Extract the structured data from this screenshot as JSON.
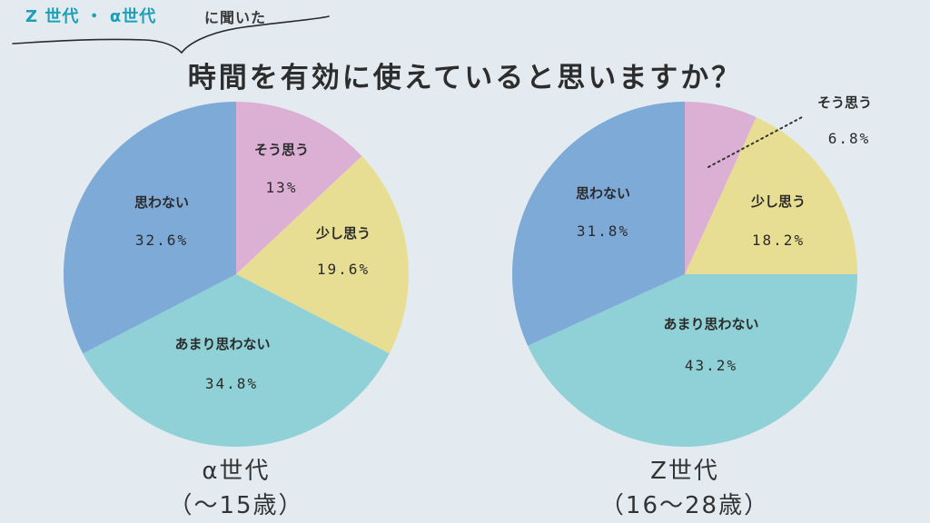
{
  "header": {
    "generations_label": "Z 世代 ・ α世代",
    "asked_label": "に聞いた",
    "title": "時間を有効に使えていると思いますか？"
  },
  "colors": {
    "strongly_agree": "#dcb0d5",
    "agree_somewhat": "#e8de93",
    "disagree_somewhat": "#8fd1d6",
    "disagree": "#7eaad8",
    "title_accent": "#1d9fb6"
  },
  "chart_data": [
    {
      "type": "pie",
      "title": "",
      "caption_line1": "α世代",
      "caption_line2": "（〜15歳）",
      "categories": [
        "そう思う",
        "少し思う",
        "あまり思わない",
        "思わない"
      ],
      "values": [
        13,
        19.6,
        34.8,
        32.6
      ],
      "value_labels": [
        "13%",
        "19.6%",
        "34.8%",
        "32.6%"
      ],
      "start": "12 o'clock, clockwise"
    },
    {
      "type": "pie",
      "title": "",
      "caption_line1": "Z世代",
      "caption_line2": "（16〜28歳）",
      "categories": [
        "そう思う",
        "少し思う",
        "あまり思わない",
        "思わない"
      ],
      "values": [
        6.8,
        18.2,
        43.2,
        31.8
      ],
      "value_labels": [
        "6.8%",
        "18.2%",
        "43.2%",
        "31.8%"
      ],
      "start": "12 o'clock, clockwise",
      "callout": "そう思う label placed outside with dotted leader"
    }
  ]
}
